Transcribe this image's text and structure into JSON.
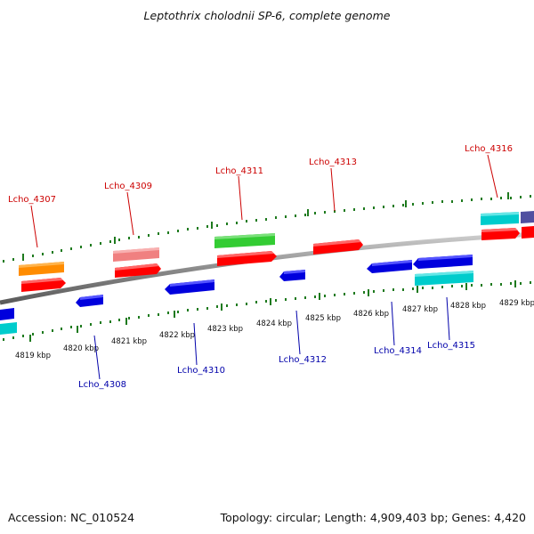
{
  "title": "Leptothrix cholodnii SP-6, complete genome",
  "footer": {
    "accession": "Accession: NC_010524",
    "summary": "Topology: circular; Length: 4,909,403 bp; Genes: 4,420"
  },
  "scale_labels": [
    "4819 kbp",
    "4820 kbp",
    "4821 kbp",
    "4822 kbp",
    "4823 kbp",
    "4824 kbp",
    "4825 kbp",
    "4826 kbp",
    "4827 kbp",
    "4828 kbp",
    "4829 kbp"
  ],
  "gene_labels": {
    "lcho_4307": "Lcho_4307",
    "lcho_4308": "Lcho_4308",
    "lcho_4309": "Lcho_4309",
    "lcho_4310": "Lcho_4310",
    "lcho_4311": "Lcho_4311",
    "lcho_4312": "Lcho_4312",
    "lcho_4313": "Lcho_4313",
    "lcho_4314": "Lcho_4314",
    "lcho_4315": "Lcho_4315",
    "lcho_4316": "Lcho_4316"
  },
  "colors": {
    "forward_label": "#cc0000",
    "reverse_label": "#0000aa",
    "tick": "#1e7a1e",
    "backbone": "#8c8c8c"
  }
}
